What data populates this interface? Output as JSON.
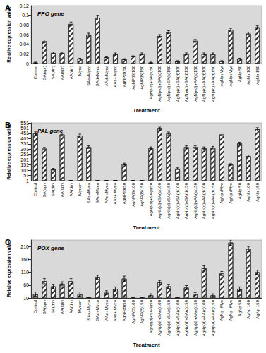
{
  "chart_data": [
    {
      "type": "bar",
      "panel": "A",
      "title": "PPO gene",
      "x_label": "Treatment",
      "y_label": "Relative expression value",
      "categories": [
        "Control",
        "SA(spr)",
        "SA(drr)",
        "AA(spr)",
        "AA(drr)",
        "Myco",
        "SAs+Myco",
        "SAd+Myco",
        "AAd+Myco",
        "AAs+ Myco",
        "AgNP(B)50",
        "AgNP(B)100",
        "AgNP(B)150",
        "AgNp(d)+SA(s)50",
        "AgNp(d)+SA(s)100",
        "AgNp(d)+SA(s)150",
        "AgNp(d)+SA(d)100",
        "AgNp(d)+SA(d)150",
        "AgNp(d)+AA(s)150",
        "AgNp(d)+AA(d)100",
        "AgNp(d)+AA(d)150",
        "AgNp+Myc",
        "AgNp+Myc",
        "AgNp 50",
        "AgNp 100",
        "AgNp 150"
      ],
      "values": [
        0.002,
        0.046,
        0.022,
        0.022,
        0.082,
        0.01,
        0.06,
        0.095,
        0.013,
        0.02,
        0.009,
        0.015,
        0.02,
        0.002,
        0.057,
        0.065,
        0.005,
        0.02,
        0.047,
        0.02,
        0.02,
        0.005,
        0.07,
        0.01,
        0.062,
        0.075
      ],
      "errors": [
        0.001,
        0.003,
        0.002,
        0.002,
        0.004,
        0.001,
        0.003,
        0.005,
        0.001,
        0.002,
        0.001,
        0.001,
        0.002,
        0.001,
        0.003,
        0.003,
        0.001,
        0.002,
        0.003,
        0.002,
        0.002,
        0.001,
        0.003,
        0.001,
        0.003,
        0.003
      ],
      "ylim": [
        0,
        0.12
      ],
      "yticks": [
        0,
        0.02,
        0.04,
        0.06,
        0.08,
        0.1,
        0.12
      ],
      "color": "#333333",
      "grid": false
    },
    {
      "type": "bar",
      "panel": "B",
      "title": "PAL gene",
      "x_label": "Treatment",
      "y_label": "Relative expression value",
      "categories": [
        "Control",
        "SA(spr)",
        "SA(drr)",
        "AA(spr)",
        "AA(drr)",
        "Mycorr",
        "SAs+Myco",
        "SAd+Myco",
        "AAd+Myco",
        "AAs+ Myco",
        "AgNP(B)50",
        "AgNP(B)100",
        "AgNP(B)150",
        "AgNp(d)+SA(s)50",
        "AgNp(d)+SA(s)100",
        "AgNp(d)+SA(s)150",
        "AgNp(d)+SA(d)100",
        "AgNp(d)+SA(d)150",
        "AgNp(d)+AA(s)150",
        "AgNp(d)+AA(d)100",
        "AgNp(d)+AA(d)150",
        "AgNp+Myc",
        "AgNp+Myc",
        "AgNp 50",
        "AgNp 100",
        "AgNp 150"
      ],
      "values": [
        450,
        305,
        110,
        440,
        2,
        430,
        320,
        2,
        2,
        3,
        160,
        2,
        2,
        310,
        495,
        450,
        115,
        320,
        320,
        310,
        315,
        440,
        155,
        355,
        235,
        490
      ],
      "errors": [
        15,
        12,
        8,
        15,
        1,
        14,
        12,
        1,
        1,
        1,
        8,
        1,
        1,
        12,
        15,
        14,
        8,
        12,
        12,
        12,
        12,
        14,
        8,
        12,
        10,
        15
      ],
      "ylim": [
        1,
        551
      ],
      "yticks": [
        1,
        51,
        101,
        151,
        201,
        251,
        301,
        351,
        401,
        451,
        501,
        551
      ],
      "color": "#333333",
      "grid": false
    },
    {
      "type": "bar",
      "panel": "C",
      "title": "POX gene",
      "x_label": "Treatment",
      "y_label": "Relative expression value",
      "categories": [
        "Control",
        "SA(spr)",
        "SA(drr)",
        "AA(spr)",
        "AA(drr)",
        "Mycorr",
        "SAs+Myco",
        "SAd+Myco",
        "AAd+Myco",
        "AAs+ Myco",
        "AgNP(B)50",
        "AgNP(B)100",
        "AgNP(B)150",
        "AgNp(d)+SA(s)50",
        "AgNp(d)+SA(s)100",
        "AgNp(d)+SA(s)150",
        "AgNp(d)+SA(d)100",
        "AgNp(d)+SA(d)150",
        "AgNp(d)+AA(s)150",
        "AgNp(d)+AA(d)100",
        "AgNp(d)+AA(d)150",
        "AgNp+Myc",
        "AgNp+Myc",
        "AgNp 50",
        "AgNp 100",
        "AgNp 150"
      ],
      "values": [
        25,
        75,
        55,
        65,
        75,
        25,
        12,
        90,
        30,
        45,
        85,
        12,
        12,
        20,
        70,
        55,
        12,
        50,
        25,
        125,
        20,
        105,
        225,
        45,
        200,
        110
      ],
      "errors": [
        8,
        10,
        8,
        8,
        10,
        8,
        2,
        8,
        8,
        8,
        10,
        2,
        2,
        6,
        8,
        8,
        2,
        8,
        6,
        10,
        6,
        8,
        10,
        8,
        10,
        8
      ],
      "ylim": [
        10,
        235
      ],
      "yticks": [
        10,
        60,
        110,
        160,
        210
      ],
      "color": "#333333",
      "grid": false
    }
  ]
}
